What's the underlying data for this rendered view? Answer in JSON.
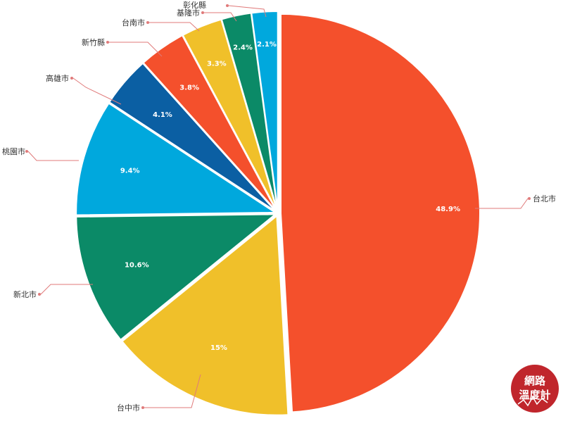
{
  "chart_data": {
    "type": "pie",
    "categories": [
      "台北市",
      "台中市",
      "新北市",
      "桃園市",
      "高雄市",
      "新竹縣",
      "台南市",
      "基隆市",
      "彰化縣"
    ],
    "values": [
      48.9,
      15,
      10.6,
      9.4,
      4.1,
      3.8,
      3.3,
      2.4,
      2.1
    ],
    "value_labels": [
      "48.9%",
      "15%",
      "10.6%",
      "9.4%",
      "4.1%",
      "3.8%",
      "3.3%",
      "2.4%",
      "2.1%"
    ],
    "colors": [
      "#f4502c",
      "#f0c02a",
      "#0b8a67",
      "#00a8dd",
      "#0b5fa3",
      "#f4502c",
      "#f0c02a",
      "#0b8a67",
      "#00a8dd"
    ],
    "title": "",
    "legend": "none",
    "start_angle": "12 o'clock",
    "direction": "clockwise"
  },
  "watermark": {
    "line1": "網路",
    "line2": "溫度計",
    "color": "#c0262c"
  }
}
